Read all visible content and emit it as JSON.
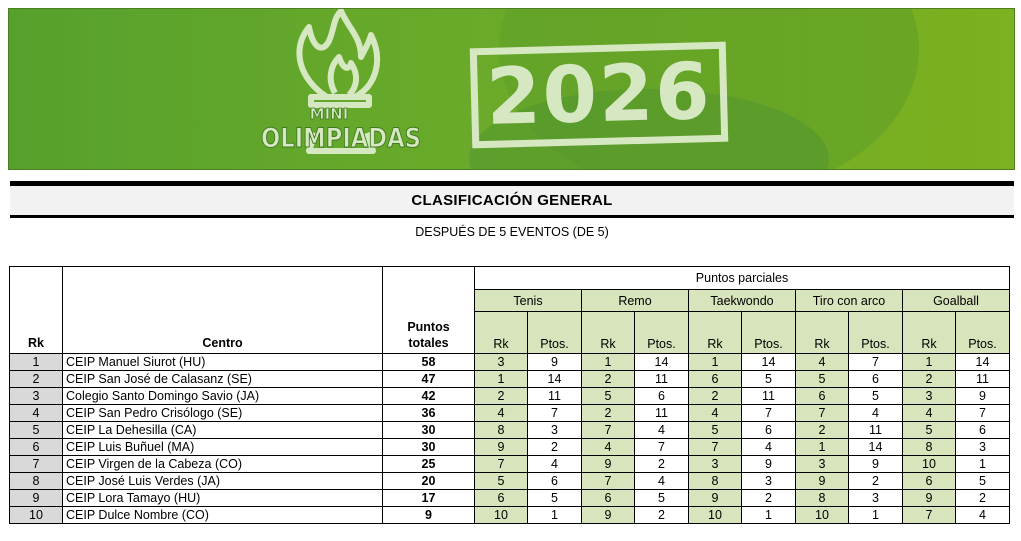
{
  "banner": {
    "logo_line1": "MINI",
    "logo_line2": "OLIMPIADAS",
    "year": "2026",
    "colors": {
      "green": "#6aaa2a",
      "pale": "#d6e8c2"
    }
  },
  "title": "CLASIFICACIÓN GENERAL",
  "subtitle": "DESPUÉS DE 5 EVENTOS (DE 5)",
  "table": {
    "rank_header": "Rk",
    "center_header": "Centro",
    "total_header_line1": "Puntos",
    "total_header_line2": "totales",
    "partials_header": "Puntos parciales",
    "events": [
      "Tenis",
      "Remo",
      "Taekwondo",
      "Tiro con arco",
      "Goalball"
    ],
    "sub_rk": "Rk",
    "sub_pts": "Ptos.",
    "rows": [
      {
        "rk": "1",
        "centro": "CEIP Manuel Siurot (HU)",
        "total": "58",
        "ev": [
          [
            "3",
            "9"
          ],
          [
            "1",
            "14"
          ],
          [
            "1",
            "14"
          ],
          [
            "4",
            "7"
          ],
          [
            "1",
            "14"
          ]
        ]
      },
      {
        "rk": "2",
        "centro": "CEIP San José de Calasanz (SE)",
        "total": "47",
        "ev": [
          [
            "1",
            "14"
          ],
          [
            "2",
            "11"
          ],
          [
            "6",
            "5"
          ],
          [
            "5",
            "6"
          ],
          [
            "2",
            "11"
          ]
        ]
      },
      {
        "rk": "3",
        "centro": "Colegio Santo Domingo Savio (JA)",
        "total": "42",
        "ev": [
          [
            "2",
            "11"
          ],
          [
            "5",
            "6"
          ],
          [
            "2",
            "11"
          ],
          [
            "6",
            "5"
          ],
          [
            "3",
            "9"
          ]
        ]
      },
      {
        "rk": "4",
        "centro": "CEIP San Pedro Crisólogo (SE)",
        "total": "36",
        "ev": [
          [
            "4",
            "7"
          ],
          [
            "2",
            "11"
          ],
          [
            "4",
            "7"
          ],
          [
            "7",
            "4"
          ],
          [
            "4",
            "7"
          ]
        ]
      },
      {
        "rk": "5",
        "centro": "CEIP La Dehesilla (CA)",
        "total": "30",
        "ev": [
          [
            "8",
            "3"
          ],
          [
            "7",
            "4"
          ],
          [
            "5",
            "6"
          ],
          [
            "2",
            "11"
          ],
          [
            "5",
            "6"
          ]
        ]
      },
      {
        "rk": "6",
        "centro": "CEIP Luis Buñuel (MA)",
        "total": "30",
        "ev": [
          [
            "9",
            "2"
          ],
          [
            "4",
            "7"
          ],
          [
            "7",
            "4"
          ],
          [
            "1",
            "14"
          ],
          [
            "8",
            "3"
          ]
        ]
      },
      {
        "rk": "7",
        "centro": "CEIP Virgen de la Cabeza (CO)",
        "total": "25",
        "ev": [
          [
            "7",
            "4"
          ],
          [
            "9",
            "2"
          ],
          [
            "3",
            "9"
          ],
          [
            "3",
            "9"
          ],
          [
            "10",
            "1"
          ]
        ]
      },
      {
        "rk": "8",
        "centro": "CEIP José Luis Verdes (JA)",
        "total": "20",
        "ev": [
          [
            "5",
            "6"
          ],
          [
            "7",
            "4"
          ],
          [
            "8",
            "3"
          ],
          [
            "9",
            "2"
          ],
          [
            "6",
            "5"
          ]
        ]
      },
      {
        "rk": "9",
        "centro": "CEIP Lora Tamayo (HU)",
        "total": "17",
        "ev": [
          [
            "6",
            "5"
          ],
          [
            "6",
            "5"
          ],
          [
            "9",
            "2"
          ],
          [
            "8",
            "3"
          ],
          [
            "9",
            "2"
          ]
        ]
      },
      {
        "rk": "10",
        "centro": "CEIP Dulce Nombre (CO)",
        "total": "9",
        "ev": [
          [
            "10",
            "1"
          ],
          [
            "9",
            "2"
          ],
          [
            "10",
            "1"
          ],
          [
            "10",
            "1"
          ],
          [
            "7",
            "4"
          ]
        ]
      }
    ]
  }
}
